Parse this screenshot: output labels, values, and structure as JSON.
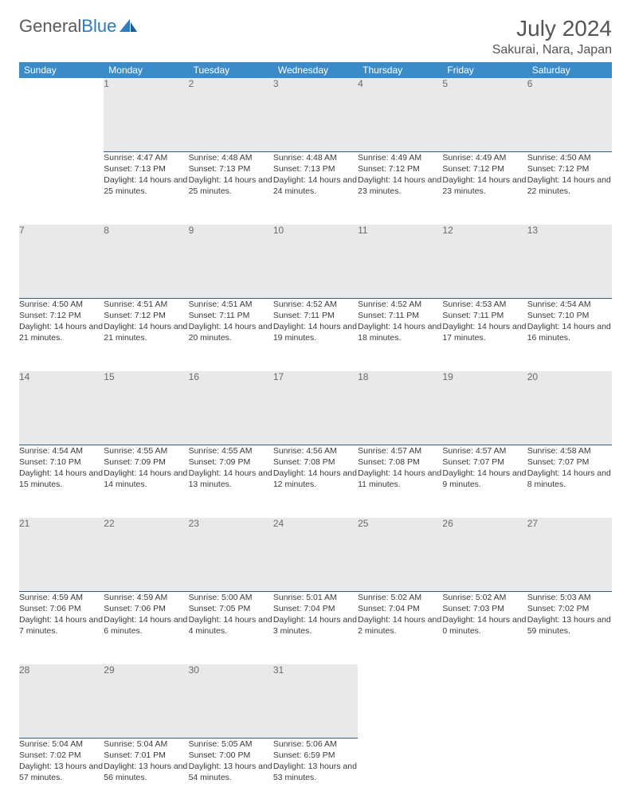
{
  "header": {
    "logo_general": "General",
    "logo_blue": "Blue",
    "month_title": "July 2024",
    "location": "Sakurai, Nara, Japan"
  },
  "colors": {
    "header_bg": "#3b8bc8",
    "header_text": "#ffffff",
    "daynum_bg": "#e9e9e9",
    "daynum_text": "#6a6a6a",
    "daynum_border": "#2e5d8a",
    "body_text": "#3a3a3a",
    "logo_gray": "#5a5a5a",
    "logo_blue": "#2b7cc0"
  },
  "weekdays": [
    "Sunday",
    "Monday",
    "Tuesday",
    "Wednesday",
    "Thursday",
    "Friday",
    "Saturday"
  ],
  "labels": {
    "sunrise": "Sunrise:",
    "sunset": "Sunset:",
    "daylight": "Daylight:"
  },
  "weeks": [
    {
      "nums": [
        "",
        "1",
        "2",
        "3",
        "4",
        "5",
        "6"
      ],
      "cells": [
        null,
        {
          "sunrise": "4:47 AM",
          "sunset": "7:13 PM",
          "daylight": "14 hours and 25 minutes."
        },
        {
          "sunrise": "4:48 AM",
          "sunset": "7:13 PM",
          "daylight": "14 hours and 25 minutes."
        },
        {
          "sunrise": "4:48 AM",
          "sunset": "7:13 PM",
          "daylight": "14 hours and 24 minutes."
        },
        {
          "sunrise": "4:49 AM",
          "sunset": "7:12 PM",
          "daylight": "14 hours and 23 minutes."
        },
        {
          "sunrise": "4:49 AM",
          "sunset": "7:12 PM",
          "daylight": "14 hours and 23 minutes."
        },
        {
          "sunrise": "4:50 AM",
          "sunset": "7:12 PM",
          "daylight": "14 hours and 22 minutes."
        }
      ]
    },
    {
      "nums": [
        "7",
        "8",
        "9",
        "10",
        "11",
        "12",
        "13"
      ],
      "cells": [
        {
          "sunrise": "4:50 AM",
          "sunset": "7:12 PM",
          "daylight": "14 hours and 21 minutes."
        },
        {
          "sunrise": "4:51 AM",
          "sunset": "7:12 PM",
          "daylight": "14 hours and 21 minutes."
        },
        {
          "sunrise": "4:51 AM",
          "sunset": "7:11 PM",
          "daylight": "14 hours and 20 minutes."
        },
        {
          "sunrise": "4:52 AM",
          "sunset": "7:11 PM",
          "daylight": "14 hours and 19 minutes."
        },
        {
          "sunrise": "4:52 AM",
          "sunset": "7:11 PM",
          "daylight": "14 hours and 18 minutes."
        },
        {
          "sunrise": "4:53 AM",
          "sunset": "7:11 PM",
          "daylight": "14 hours and 17 minutes."
        },
        {
          "sunrise": "4:54 AM",
          "sunset": "7:10 PM",
          "daylight": "14 hours and 16 minutes."
        }
      ]
    },
    {
      "nums": [
        "14",
        "15",
        "16",
        "17",
        "18",
        "19",
        "20"
      ],
      "cells": [
        {
          "sunrise": "4:54 AM",
          "sunset": "7:10 PM",
          "daylight": "14 hours and 15 minutes."
        },
        {
          "sunrise": "4:55 AM",
          "sunset": "7:09 PM",
          "daylight": "14 hours and 14 minutes."
        },
        {
          "sunrise": "4:55 AM",
          "sunset": "7:09 PM",
          "daylight": "14 hours and 13 minutes."
        },
        {
          "sunrise": "4:56 AM",
          "sunset": "7:08 PM",
          "daylight": "14 hours and 12 minutes."
        },
        {
          "sunrise": "4:57 AM",
          "sunset": "7:08 PM",
          "daylight": "14 hours and 11 minutes."
        },
        {
          "sunrise": "4:57 AM",
          "sunset": "7:07 PM",
          "daylight": "14 hours and 9 minutes."
        },
        {
          "sunrise": "4:58 AM",
          "sunset": "7:07 PM",
          "daylight": "14 hours and 8 minutes."
        }
      ]
    },
    {
      "nums": [
        "21",
        "22",
        "23",
        "24",
        "25",
        "26",
        "27"
      ],
      "cells": [
        {
          "sunrise": "4:59 AM",
          "sunset": "7:06 PM",
          "daylight": "14 hours and 7 minutes."
        },
        {
          "sunrise": "4:59 AM",
          "sunset": "7:06 PM",
          "daylight": "14 hours and 6 minutes."
        },
        {
          "sunrise": "5:00 AM",
          "sunset": "7:05 PM",
          "daylight": "14 hours and 4 minutes."
        },
        {
          "sunrise": "5:01 AM",
          "sunset": "7:04 PM",
          "daylight": "14 hours and 3 minutes."
        },
        {
          "sunrise": "5:02 AM",
          "sunset": "7:04 PM",
          "daylight": "14 hours and 2 minutes."
        },
        {
          "sunrise": "5:02 AM",
          "sunset": "7:03 PM",
          "daylight": "14 hours and 0 minutes."
        },
        {
          "sunrise": "5:03 AM",
          "sunset": "7:02 PM",
          "daylight": "13 hours and 59 minutes."
        }
      ]
    },
    {
      "nums": [
        "28",
        "29",
        "30",
        "31",
        "",
        "",
        ""
      ],
      "cells": [
        {
          "sunrise": "5:04 AM",
          "sunset": "7:02 PM",
          "daylight": "13 hours and 57 minutes."
        },
        {
          "sunrise": "5:04 AM",
          "sunset": "7:01 PM",
          "daylight": "13 hours and 56 minutes."
        },
        {
          "sunrise": "5:05 AM",
          "sunset": "7:00 PM",
          "daylight": "13 hours and 54 minutes."
        },
        {
          "sunrise": "5:06 AM",
          "sunset": "6:59 PM",
          "daylight": "13 hours and 53 minutes."
        },
        null,
        null,
        null
      ]
    }
  ]
}
